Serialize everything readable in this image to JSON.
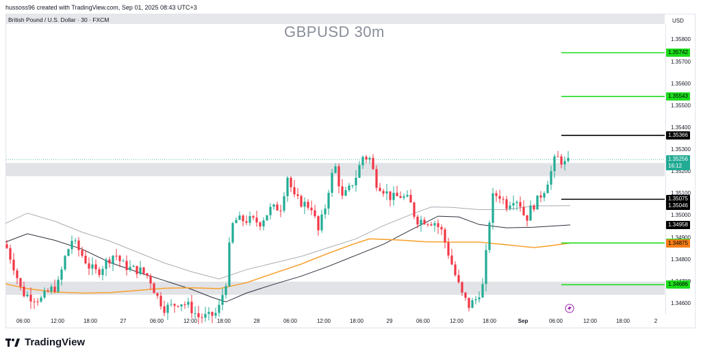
{
  "header": {
    "created_by": "hussoss96 created with TradingView.com, Sep 01, 2025 08:43 UTC+3",
    "symbol_line": "British Pound / U.S. Dollar · 30 · FXCM",
    "currency": "USD"
  },
  "brand": {
    "logo_text": "TradingView"
  },
  "chart_data": {
    "type": "candlestick",
    "title": "GBPUSD 30m",
    "ylim": [
      1.3455,
      1.3587
    ],
    "y_ticks": [
      "1.35800",
      "1.35700",
      "1.35600",
      "1.35500",
      "1.35400",
      "1.35300",
      "1.35200",
      "1.35100",
      "1.35000",
      "1.34900",
      "1.34800",
      "1.34700",
      "1.34600"
    ],
    "x_ticks": [
      {
        "label": "06:00",
        "x": 34
      },
      {
        "label": "12:00",
        "x": 84
      },
      {
        "label": "18:00",
        "x": 132
      },
      {
        "label": "27",
        "x": 180
      },
      {
        "label": "06:00",
        "x": 229
      },
      {
        "label": "12:00",
        "x": 278
      },
      {
        "label": "18:00",
        "x": 327
      },
      {
        "label": "28",
        "x": 375
      },
      {
        "label": "06:00",
        "x": 424
      },
      {
        "label": "12:00",
        "x": 473
      },
      {
        "label": "18:00",
        "x": 521
      },
      {
        "label": "29",
        "x": 569
      },
      {
        "label": "06:00",
        "x": 618
      },
      {
        "label": "12:00",
        "x": 667
      },
      {
        "label": "18:00",
        "x": 715
      },
      {
        "label": "Sep",
        "x": 764,
        "bold": true
      },
      {
        "label": "06:00",
        "x": 812
      },
      {
        "label": "12:00",
        "x": 862
      },
      {
        "label": "18:00",
        "x": 910
      },
      {
        "label": "2",
        "x": 958
      }
    ],
    "close_path": [
      [
        8,
        1.3487
      ],
      [
        20,
        1.3477
      ],
      [
        32,
        1.3465
      ],
      [
        45,
        1.3463
      ],
      [
        60,
        1.3462
      ],
      [
        72,
        1.3466
      ],
      [
        84,
        1.3468
      ],
      [
        95,
        1.3481
      ],
      [
        105,
        1.3489
      ],
      [
        118,
        1.3483
      ],
      [
        130,
        1.3477
      ],
      [
        142,
        1.3474
      ],
      [
        155,
        1.3479
      ],
      [
        168,
        1.3483
      ],
      [
        178,
        1.3478
      ],
      [
        190,
        1.3476
      ],
      [
        205,
        1.3475
      ],
      [
        218,
        1.3472
      ],
      [
        228,
        1.3464
      ],
      [
        240,
        1.3458
      ],
      [
        252,
        1.3459
      ],
      [
        262,
        1.3461
      ],
      [
        275,
        1.3459
      ],
      [
        290,
        1.3454
      ],
      [
        305,
        1.3454
      ],
      [
        318,
        1.3456
      ],
      [
        330,
        1.347
      ],
      [
        338,
        1.3495
      ],
      [
        345,
        1.3498
      ],
      [
        355,
        1.3498
      ],
      [
        365,
        1.3498
      ],
      [
        380,
        1.3497
      ],
      [
        395,
        1.3503
      ],
      [
        410,
        1.3504
      ],
      [
        420,
        1.3518
      ],
      [
        430,
        1.3508
      ],
      [
        440,
        1.3506
      ],
      [
        455,
        1.3504
      ],
      [
        465,
        1.3493
      ],
      [
        475,
        1.3504
      ],
      [
        483,
        1.3517
      ],
      [
        490,
        1.3522
      ],
      [
        500,
        1.3508
      ],
      [
        510,
        1.3512
      ],
      [
        520,
        1.3518
      ],
      [
        530,
        1.3527
      ],
      [
        540,
        1.3526
      ],
      [
        550,
        1.3515
      ],
      [
        560,
        1.3512
      ],
      [
        572,
        1.3508
      ],
      [
        585,
        1.3509
      ],
      [
        598,
        1.3507
      ],
      [
        608,
        1.3498
      ],
      [
        620,
        1.3498
      ],
      [
        635,
        1.3497
      ],
      [
        645,
        1.3493
      ],
      [
        655,
        1.3483
      ],
      [
        665,
        1.3473
      ],
      [
        675,
        1.3464
      ],
      [
        685,
        1.3459
      ],
      [
        695,
        1.3462
      ],
      [
        705,
        1.3468
      ],
      [
        712,
        1.3488
      ],
      [
        718,
        1.3508
      ],
      [
        728,
        1.351
      ],
      [
        740,
        1.3505
      ],
      [
        750,
        1.3508
      ],
      [
        758,
        1.3507
      ],
      [
        768,
        1.3498
      ],
      [
        775,
        1.3503
      ],
      [
        785,
        1.3507
      ],
      [
        795,
        1.3512
      ],
      [
        805,
        1.352
      ],
      [
        812,
        1.3527
      ],
      [
        820,
        1.3525
      ],
      [
        828,
        1.3523
      ],
      [
        833,
        1.3526
      ]
    ],
    "series": [
      {
        "name": "",
        "color": "#a8abb3",
        "points": [
          [
            8,
            1.34965
          ],
          [
            40,
            1.35012
          ],
          [
            80,
            1.34975
          ],
          [
            120,
            1.34925
          ],
          [
            160,
            1.34885
          ],
          [
            200,
            1.34835
          ],
          [
            240,
            1.34785
          ],
          [
            280,
            1.34745
          ],
          [
            320,
            1.34712
          ],
          [
            360,
            1.34755
          ],
          [
            400,
            1.34785
          ],
          [
            440,
            1.34815
          ],
          [
            480,
            1.34855
          ],
          [
            520,
            1.34895
          ],
          [
            560,
            1.34955
          ],
          [
            600,
            1.35005
          ],
          [
            630,
            1.3504
          ],
          [
            660,
            1.35038
          ],
          [
            700,
            1.35028
          ],
          [
            740,
            1.35028
          ],
          [
            780,
            1.35045
          ],
          [
            833,
            1.35046
          ]
        ]
      },
      {
        "name": "",
        "color": "#2a2e39",
        "points": [
          [
            8,
            1.3488
          ],
          [
            40,
            1.34918
          ],
          [
            80,
            1.34888
          ],
          [
            120,
            1.34848
          ],
          [
            160,
            1.34788
          ],
          [
            200,
            1.34745
          ],
          [
            240,
            1.34705
          ],
          [
            280,
            1.34665
          ],
          [
            310,
            1.34628
          ],
          [
            330,
            1.34608
          ],
          [
            360,
            1.34648
          ],
          [
            400,
            1.34688
          ],
          [
            440,
            1.34725
          ],
          [
            480,
            1.3477
          ],
          [
            520,
            1.3482
          ],
          [
            560,
            1.3487
          ],
          [
            600,
            1.34935
          ],
          [
            640,
            1.34998
          ],
          [
            670,
            1.34995
          ],
          [
            700,
            1.3496
          ],
          [
            740,
            1.34945
          ],
          [
            780,
            1.34948
          ],
          [
            833,
            1.34958
          ]
        ]
      },
      {
        "name": "",
        "color": "#f7a334",
        "points": [
          [
            8,
            1.3469
          ],
          [
            40,
            1.34668
          ],
          [
            80,
            1.34653
          ],
          [
            120,
            1.34648
          ],
          [
            160,
            1.3465
          ],
          [
            200,
            1.3466
          ],
          [
            240,
            1.3467
          ],
          [
            280,
            1.34672
          ],
          [
            320,
            1.34668
          ],
          [
            360,
            1.34695
          ],
          [
            400,
            1.34738
          ],
          [
            440,
            1.3478
          ],
          [
            480,
            1.3483
          ],
          [
            520,
            1.34875
          ],
          [
            540,
            1.34895
          ],
          [
            580,
            1.3489
          ],
          [
            620,
            1.34882
          ],
          [
            660,
            1.3488
          ],
          [
            700,
            1.3488
          ],
          [
            740,
            1.34868
          ],
          [
            780,
            1.34855
          ],
          [
            800,
            1.34862
          ],
          [
            833,
            1.34876
          ]
        ]
      }
    ],
    "zones": [
      {
        "from": 1.3524,
        "to": 1.3518
      },
      {
        "from": 1.347,
        "to": 1.3464
      }
    ],
    "levels": [
      {
        "price": 1.35742,
        "label": "1.35742",
        "color": "#1ddc1d",
        "x1": 820
      },
      {
        "price": 1.35543,
        "label": "1.35543",
        "color": "#1ddc1d",
        "x1": 820
      },
      {
        "price": 1.35366,
        "label": "1.35366",
        "color": "#000000",
        "x1": 820
      },
      {
        "price": 1.35075,
        "label": "1.35075",
        "color": "#000000",
        "x1": 820
      },
      {
        "price": 1.34876,
        "label": "1.34876",
        "color": "#1ddc1d",
        "x1": 820
      },
      {
        "price": 1.34686,
        "label": "1.34686",
        "color": "#1ddc1d",
        "x1": 820
      }
    ],
    "price_labels": [
      {
        "text": "1.35742",
        "bg": "#1ddc1d",
        "fg": "#000000",
        "price": 1.35742
      },
      {
        "text": "1.35543",
        "bg": "#1ddc1d",
        "fg": "#000000",
        "price": 1.35543
      },
      {
        "text": "1.35366",
        "bg": "#000000",
        "fg": "#ffffff",
        "price": 1.35366
      },
      {
        "text": "1.35256",
        "bg": "#22ab94",
        "fg": "#ffffff",
        "price": 1.35256,
        "sub": "16:12"
      },
      {
        "text": "1.35075",
        "bg": "#000000",
        "fg": "#ffffff",
        "price": 1.35075
      },
      {
        "text": "1.35046",
        "bg": "#000000",
        "fg": "#ffffff",
        "price": 1.35046
      },
      {
        "text": "1.34958",
        "bg": "#000000",
        "fg": "#ffffff",
        "price": 1.34958
      },
      {
        "text": "1.34876",
        "bg": "#1ddc1d",
        "fg": "#000000",
        "price": 1.34876
      },
      {
        "text": "1.34875",
        "bg": "#f57f17",
        "fg": "#000000",
        "price": 1.34875
      },
      {
        "text": "1.34686",
        "bg": "#1ddc1d",
        "fg": "#000000",
        "price": 1.34686
      }
    ],
    "current_price": 1.35256,
    "colors": {
      "up": "#22ab94",
      "down": "#f23645"
    }
  }
}
